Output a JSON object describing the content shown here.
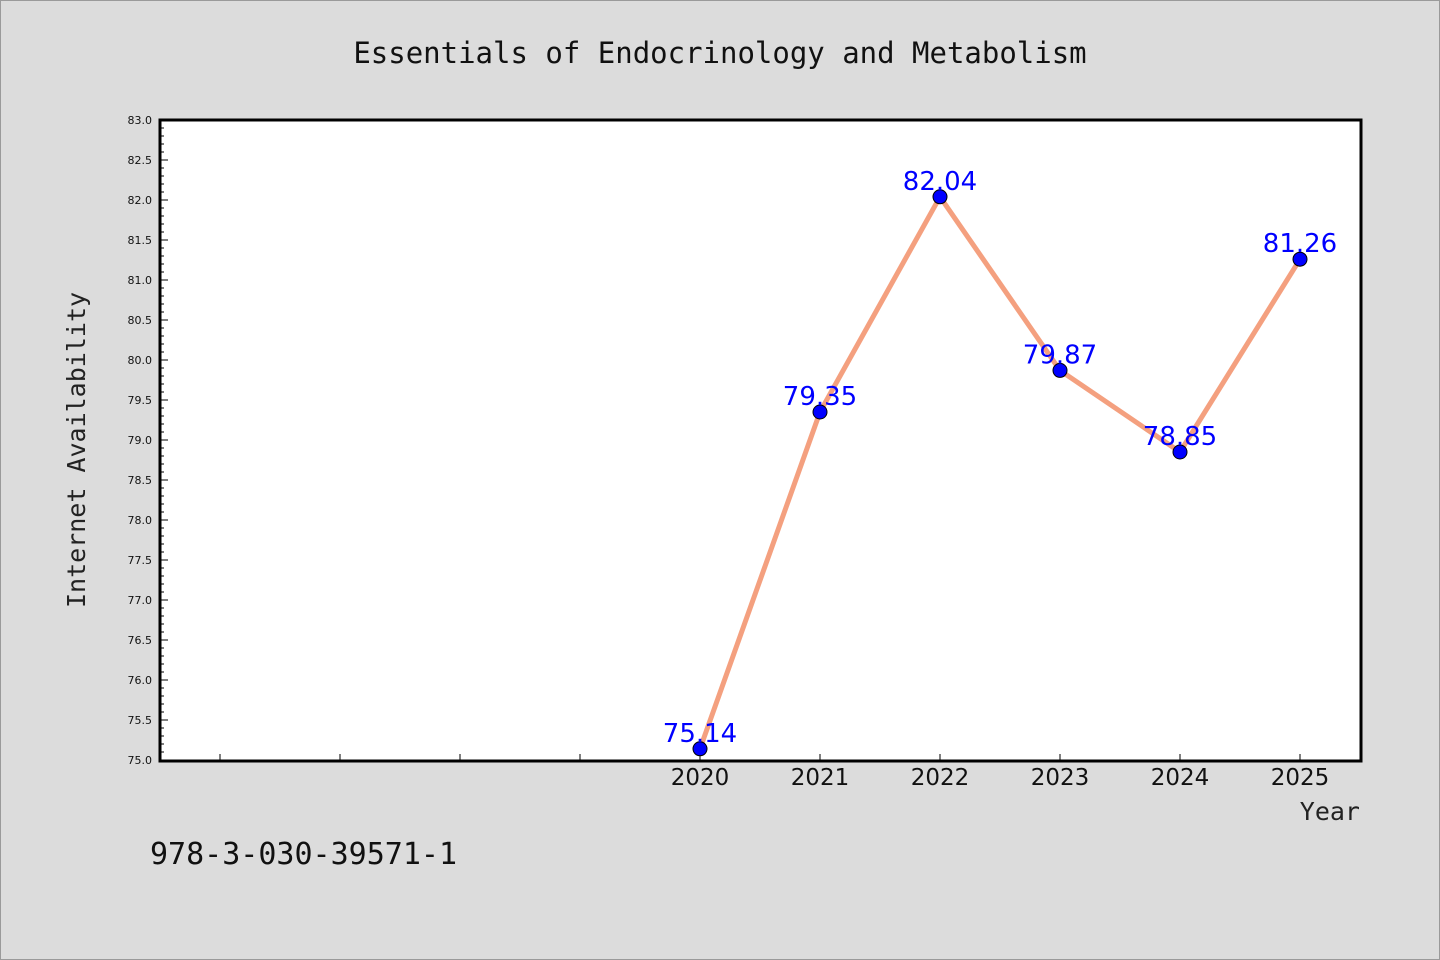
{
  "footer": {
    "code": "978-3-030-39571-1"
  },
  "colors": {
    "background": "#dcdcdc",
    "plot_background": "#ffffff",
    "line": "#f4a07f",
    "marker": "#0000ff",
    "data_label": "#0000ff"
  },
  "chart_data": {
    "type": "line",
    "title": "Essentials of Endocrinology and Metabolism",
    "xlabel": "Year",
    "ylabel": "Internet Availability",
    "categories": [
      "2020",
      "2021",
      "2022",
      "2023",
      "2024",
      "2025"
    ],
    "values": [
      75.14,
      79.35,
      82.04,
      79.87,
      78.85,
      81.26
    ],
    "data_labels": [
      "75.14",
      "79.35",
      "82.04",
      "79.87",
      "78.85",
      "81.26"
    ],
    "ylim": [
      75.0,
      83.0
    ],
    "yticks": [
      "75.0",
      "75.5",
      "76.0",
      "76.5",
      "77.0",
      "77.5",
      "78.0",
      "78.5",
      "79.0",
      "79.5",
      "80.0",
      "80.5",
      "81.0",
      "81.5",
      "82.0",
      "82.5",
      "83.0"
    ],
    "grid": false,
    "legend": false
  }
}
